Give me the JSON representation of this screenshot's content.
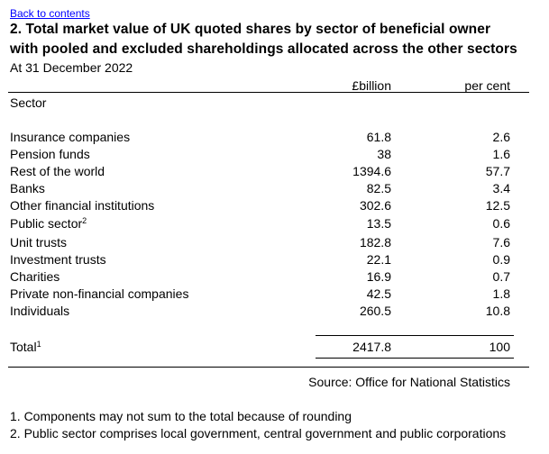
{
  "back_link": "Back to contents",
  "title_line1": "2. Total market value of UK quoted shares by sector of beneficial owner",
  "title_line2": "with pooled and excluded shareholdings allocated across the other sectors",
  "subtitle": "At 31 December 2022",
  "columns": {
    "billion": "£billion",
    "percent": "per cent"
  },
  "sector_header": "Sector",
  "rows": [
    {
      "label": "Insurance companies",
      "sup": "",
      "billion": "61.8",
      "percent": "2.6"
    },
    {
      "label": "Pension funds",
      "sup": "",
      "billion": "38",
      "percent": "1.6"
    },
    {
      "label": "Rest of the world",
      "sup": "",
      "billion": "1394.6",
      "percent": "57.7"
    },
    {
      "label": "Banks",
      "sup": "",
      "billion": "82.5",
      "percent": "3.4"
    },
    {
      "label": "Other financial institutions",
      "sup": "",
      "billion": "302.6",
      "percent": "12.5"
    },
    {
      "label": "Public sector",
      "sup": "2",
      "billion": "13.5",
      "percent": "0.6"
    },
    {
      "label": "Unit trusts",
      "sup": "",
      "billion": "182.8",
      "percent": "7.6"
    },
    {
      "label": "Investment trusts",
      "sup": "",
      "billion": "22.1",
      "percent": "0.9"
    },
    {
      "label": "Charities",
      "sup": "",
      "billion": "16.9",
      "percent": "0.7"
    },
    {
      "label": "Private non-financial companies",
      "sup": "",
      "billion": "42.5",
      "percent": "1.8"
    },
    {
      "label": "Individuals",
      "sup": "",
      "billion": "260.5",
      "percent": "10.8"
    }
  ],
  "total": {
    "label": "Total",
    "sup": "1",
    "billion": "2417.8",
    "percent": "100"
  },
  "source": "Source: Office for National Statistics",
  "footnotes": [
    "1. Components may not sum to the total because of rounding",
    "2. Public sector comprises local government, central government and public corporations"
  ]
}
